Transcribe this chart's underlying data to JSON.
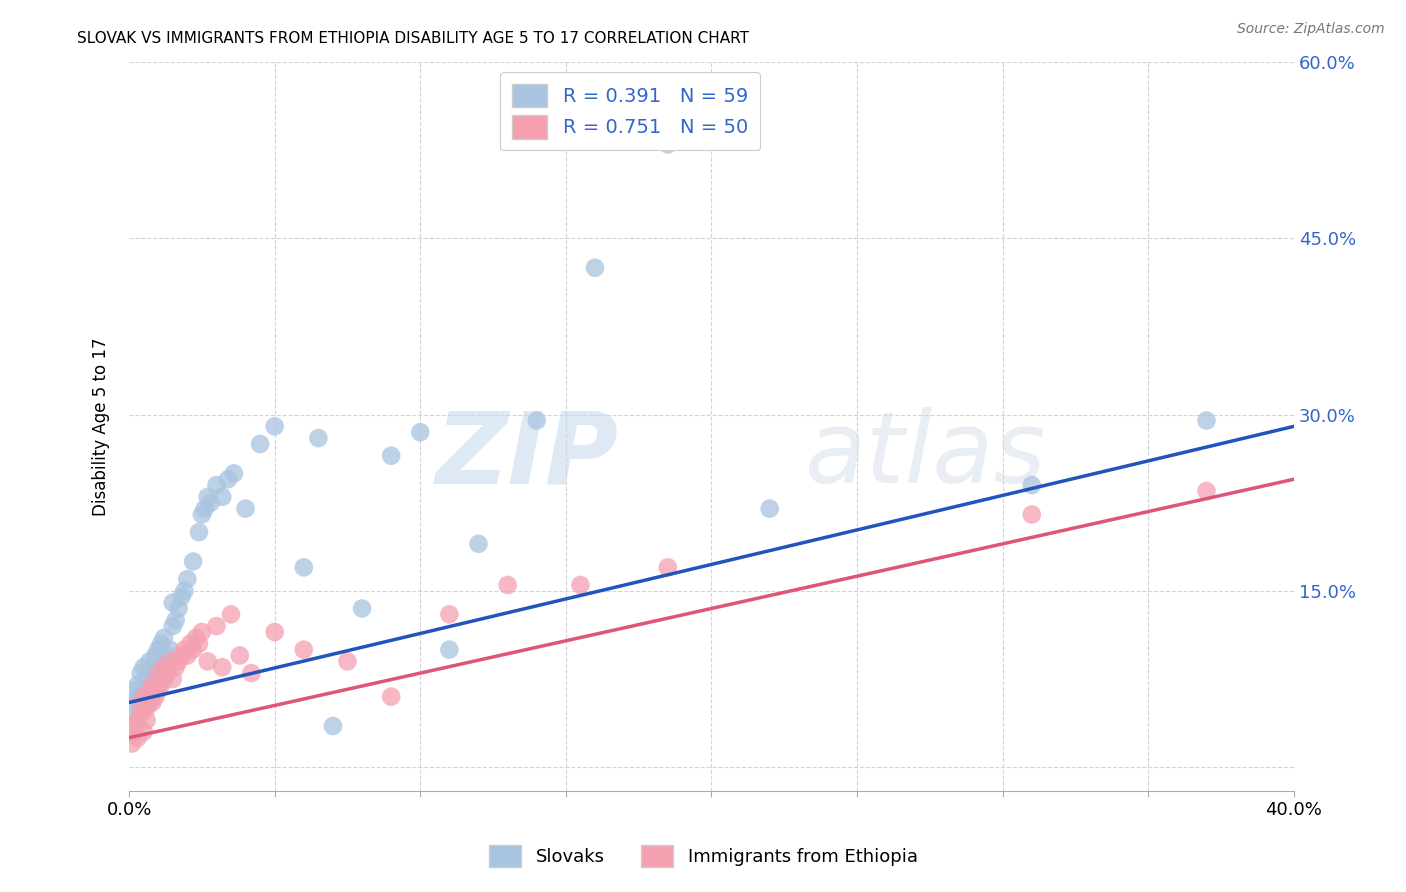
{
  "title": "SLOVAK VS IMMIGRANTS FROM ETHIOPIA DISABILITY AGE 5 TO 17 CORRELATION CHART",
  "source": "Source: ZipAtlas.com",
  "ylabel": "Disability Age 5 to 17",
  "x_min": 0.0,
  "x_max": 0.4,
  "y_min": -0.02,
  "y_max": 0.6,
  "x_ticks": [
    0.0,
    0.05,
    0.1,
    0.15,
    0.2,
    0.25,
    0.3,
    0.35,
    0.4
  ],
  "x_tick_labels": [
    "0.0%",
    "",
    "",
    "",
    "",
    "",
    "",
    "",
    "40.0%"
  ],
  "y_ticks": [
    0.0,
    0.15,
    0.3,
    0.45,
    0.6
  ],
  "y_tick_labels": [
    "",
    "15.0%",
    "30.0%",
    "45.0%",
    "60.0%"
  ],
  "blue_R": 0.391,
  "blue_N": 59,
  "pink_R": 0.751,
  "pink_N": 50,
  "blue_color": "#a8c4e0",
  "pink_color": "#f4a0b0",
  "blue_line_color": "#2255bb",
  "pink_line_color": "#dd5577",
  "legend_label_blue": "Slovaks",
  "legend_label_pink": "Immigrants from Ethiopia",
  "watermark_zip": "ZIP",
  "watermark_atlas": "atlas",
  "blue_line_start_y": 0.055,
  "blue_line_end_y": 0.29,
  "pink_line_start_y": 0.025,
  "pink_line_end_y": 0.245,
  "blue_scatter_x": [
    0.001,
    0.002,
    0.002,
    0.003,
    0.003,
    0.004,
    0.004,
    0.005,
    0.005,
    0.006,
    0.006,
    0.007,
    0.007,
    0.008,
    0.008,
    0.009,
    0.009,
    0.01,
    0.01,
    0.011,
    0.011,
    0.012,
    0.012,
    0.013,
    0.014,
    0.015,
    0.015,
    0.016,
    0.017,
    0.018,
    0.019,
    0.02,
    0.022,
    0.024,
    0.025,
    0.026,
    0.027,
    0.028,
    0.03,
    0.032,
    0.034,
    0.036,
    0.04,
    0.045,
    0.05,
    0.06,
    0.065,
    0.07,
    0.08,
    0.09,
    0.1,
    0.11,
    0.12,
    0.14,
    0.16,
    0.185,
    0.22,
    0.31,
    0.37
  ],
  "blue_scatter_y": [
    0.055,
    0.045,
    0.065,
    0.06,
    0.07,
    0.05,
    0.08,
    0.055,
    0.085,
    0.065,
    0.075,
    0.07,
    0.09,
    0.075,
    0.085,
    0.065,
    0.095,
    0.075,
    0.1,
    0.08,
    0.105,
    0.09,
    0.11,
    0.095,
    0.1,
    0.12,
    0.14,
    0.125,
    0.135,
    0.145,
    0.15,
    0.16,
    0.175,
    0.2,
    0.215,
    0.22,
    0.23,
    0.225,
    0.24,
    0.23,
    0.245,
    0.25,
    0.22,
    0.275,
    0.29,
    0.17,
    0.28,
    0.035,
    0.135,
    0.265,
    0.285,
    0.1,
    0.19,
    0.295,
    0.425,
    0.53,
    0.22,
    0.24,
    0.295
  ],
  "pink_scatter_x": [
    0.001,
    0.001,
    0.002,
    0.003,
    0.003,
    0.004,
    0.004,
    0.005,
    0.005,
    0.006,
    0.006,
    0.007,
    0.007,
    0.008,
    0.008,
    0.009,
    0.01,
    0.01,
    0.011,
    0.012,
    0.012,
    0.013,
    0.014,
    0.015,
    0.016,
    0.017,
    0.018,
    0.019,
    0.02,
    0.021,
    0.022,
    0.023,
    0.024,
    0.025,
    0.027,
    0.03,
    0.032,
    0.035,
    0.038,
    0.042,
    0.05,
    0.06,
    0.075,
    0.09,
    0.11,
    0.13,
    0.155,
    0.185,
    0.31,
    0.37
  ],
  "pink_scatter_y": [
    0.035,
    0.02,
    0.03,
    0.04,
    0.025,
    0.045,
    0.055,
    0.03,
    0.06,
    0.04,
    0.05,
    0.055,
    0.065,
    0.055,
    0.07,
    0.06,
    0.065,
    0.08,
    0.07,
    0.075,
    0.085,
    0.08,
    0.09,
    0.075,
    0.085,
    0.09,
    0.095,
    0.1,
    0.095,
    0.105,
    0.1,
    0.11,
    0.105,
    0.115,
    0.09,
    0.12,
    0.085,
    0.13,
    0.095,
    0.08,
    0.115,
    0.1,
    0.09,
    0.06,
    0.13,
    0.155,
    0.155,
    0.17,
    0.215,
    0.235
  ]
}
